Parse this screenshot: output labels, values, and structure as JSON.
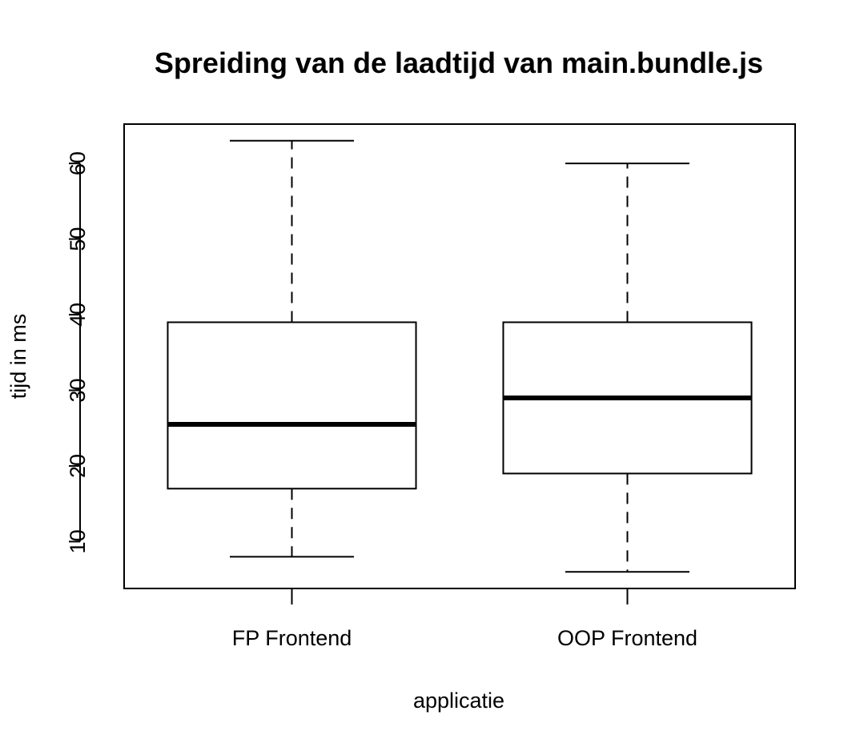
{
  "chart_data": {
    "type": "boxplot",
    "title": "Spreiding van de laadtijd van main.bundle.js",
    "xlabel": "applicatie",
    "ylabel": "tijd in ms",
    "ylim": [
      3.8,
      65.2
    ],
    "yticks": [
      "10",
      "20",
      "30",
      "40",
      "50",
      "60"
    ],
    "categories": [
      "FP Frontend",
      "OOP Frontend"
    ],
    "boxes": [
      {
        "name": "FP Frontend",
        "min": 8,
        "q1": 17,
        "median": 25.5,
        "q3": 39,
        "max": 63
      },
      {
        "name": "OOP Frontend",
        "min": 6,
        "q1": 19,
        "median": 29,
        "q3": 39,
        "max": 60
      }
    ],
    "grid": false,
    "colors": {
      "box_fill": "#ffffff",
      "stroke": "#000000"
    }
  }
}
